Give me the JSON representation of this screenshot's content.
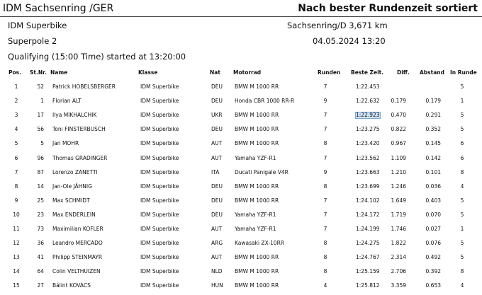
{
  "header": {
    "title": "IDM Sachsenring /GER",
    "sort_note": "Nach bester Rundenzeit sortiert"
  },
  "info": {
    "class": "IDM Superbike",
    "track": "Sachsenring/D 3,671 km",
    "session": "Superpole 2",
    "date": "04.05.2024 13:20",
    "start": "Qualifying (15:00 Time) started at 13:20:00"
  },
  "table": {
    "columns": [
      "Pos.",
      "St.Nr.",
      "Name",
      "Klasse",
      "Nat",
      "Motorrad",
      "Runden",
      "Beste Zeit.",
      "Diff.",
      "Abstand",
      "In Runde"
    ],
    "rows": [
      {
        "pos": "1",
        "nr": "52",
        "name": "Patrick HOBELSBERGER",
        "class": "IDM Superbike",
        "nat": "DEU",
        "bike": "BMW M 1000 RR",
        "laps": "7",
        "best": "1:22.453",
        "lap": "5"
      },
      {
        "pos": "2",
        "nr": "1",
        "name": "Florian ALT",
        "class": "IDM Superbike",
        "nat": "DEU",
        "bike": "Honda CBR 1000 RR-R",
        "laps": "9",
        "best": "1:22.632",
        "diff": "0.179",
        "gap": "0.179",
        "lap": "1"
      },
      {
        "pos": "3",
        "nr": "17",
        "name": "Ilya MIKHALCHIK",
        "class": "IDM Superbike",
        "nat": "UKR",
        "bike": "BMW M 1000 RR",
        "laps": "7",
        "best": "1:22.923",
        "diff": "0.470",
        "gap": "0.291",
        "lap": "5"
      },
      {
        "pos": "4",
        "nr": "56",
        "name": "Toni FINSTERBUSCH",
        "class": "IDM Superbike",
        "nat": "DEU",
        "bike": "BMW M 1000 RR",
        "laps": "7",
        "best": "1:23.275",
        "diff": "0.822",
        "gap": "0.352",
        "lap": "5"
      },
      {
        "pos": "5",
        "nr": "5",
        "name": "Jan MOHR",
        "class": "IDM Superbike",
        "nat": "AUT",
        "bike": "BMW M 1000 RR",
        "laps": "8",
        "best": "1:23.420",
        "diff": "0.967",
        "gap": "0.145",
        "lap": "6"
      },
      {
        "pos": "6",
        "nr": "96",
        "name": "Thomas GRADINGER",
        "class": "IDM Superbike",
        "nat": "AUT",
        "bike": "Yamaha YZF-R1",
        "laps": "7",
        "best": "1:23.562",
        "diff": "1.109",
        "gap": "0.142",
        "lap": "6"
      },
      {
        "pos": "7",
        "nr": "87",
        "name": "Lorenzo ZANETTI",
        "class": "IDM Superbike",
        "nat": "ITA",
        "bike": "Ducati Panigale V4R",
        "laps": "9",
        "best": "1:23.663",
        "diff": "1.210",
        "gap": "0.101",
        "lap": "8"
      },
      {
        "pos": "8",
        "nr": "14",
        "name": "Jan-Ole JÄHNIG",
        "class": "IDM Superbike",
        "nat": "DEU",
        "bike": "BMW M 1000 RR",
        "laps": "8",
        "best": "1:23.699",
        "diff": "1.246",
        "gap": "0.036",
        "lap": "4"
      },
      {
        "pos": "9",
        "nr": "25",
        "name": "Max SCHMIDT",
        "class": "IDM Superbike",
        "nat": "DEU",
        "bike": "BMW M 1000 RR",
        "laps": "7",
        "best": "1:24.102",
        "diff": "1.649",
        "gap": "0.403",
        "lap": "5"
      },
      {
        "pos": "10",
        "nr": "23",
        "name": "Max ENDERLEIN",
        "class": "IDM Superbike",
        "nat": "DEU",
        "bike": "Yamaha YZF-R1",
        "laps": "7",
        "best": "1:24.172",
        "diff": "1.719",
        "gap": "0.070",
        "lap": "5"
      },
      {
        "pos": "11",
        "nr": "73",
        "name": "Maximilian KOFLER",
        "class": "IDM Superbike",
        "nat": "AUT",
        "bike": "Yamaha YZF-R1",
        "laps": "7",
        "best": "1:24.199",
        "diff": "1.746",
        "gap": "0.027",
        "lap": "1"
      },
      {
        "pos": "12",
        "nr": "36",
        "name": "Leandro MERCADO",
        "class": "IDM Superbike",
        "nat": "ARG",
        "bike": "Kawasaki ZX-10RR",
        "laps": "8",
        "best": "1:24.275",
        "diff": "1.822",
        "gap": "0.076",
        "lap": "5"
      },
      {
        "pos": "13",
        "nr": "41",
        "name": "Philipp STEINMAYR",
        "class": "IDM Superbike",
        "nat": "AUT",
        "bike": "BMW M 1000 RR",
        "laps": "8",
        "best": "1:24.767",
        "diff": "2.314",
        "gap": "0.492",
        "lap": "5"
      },
      {
        "pos": "14",
        "nr": "64",
        "name": "Colin VELTHUIZEN",
        "class": "IDM Superbike",
        "nat": "NLD",
        "bike": "BMW M 1000 RR",
        "laps": "8",
        "best": "1:25.159",
        "diff": "2.706",
        "gap": "0.392",
        "lap": "8"
      },
      {
        "pos": "15",
        "nr": "27",
        "name": "Bálint KOVÁCS",
        "class": "IDM Superbike",
        "nat": "HUN",
        "bike": "BMW M 1000 RR",
        "laps": "4",
        "best": "1:25.812",
        "diff": "3.359",
        "gap": "0.653",
        "lap": "4"
      }
    ]
  }
}
